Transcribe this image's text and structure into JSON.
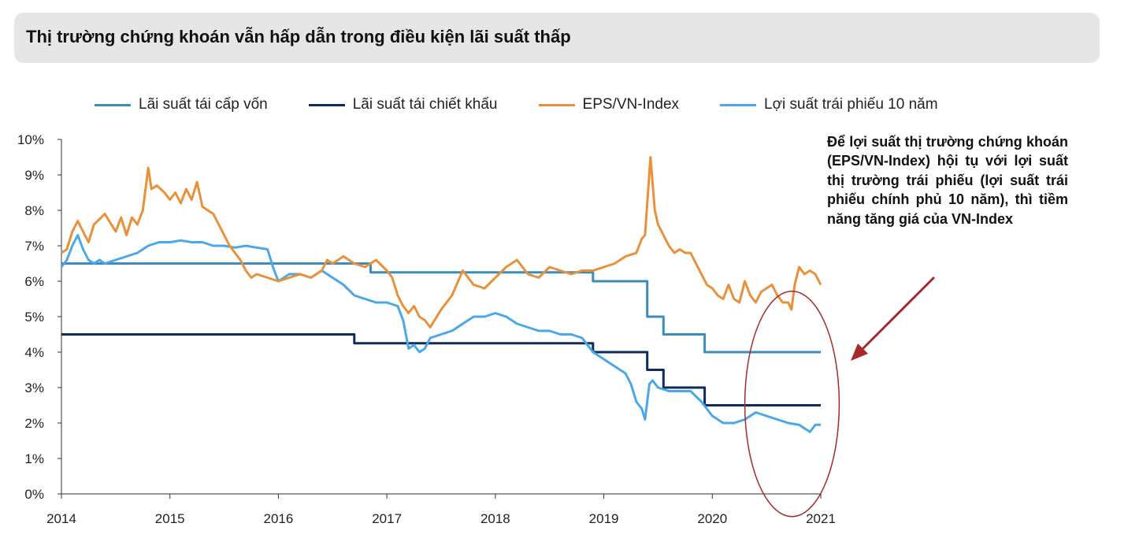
{
  "title": "Thị trường chứng khoán vẫn hấp dẫn trong điều kiện lãi suất thấp",
  "annotation": "Để lợi suất thị trường chứng khoán (EPS/VN-Index) hội tụ với lợi suất thị trường trái phiếu (lợi suất trái phiếu chính phủ 10 năm), thì tiềm năng tăng giá của VN-Index",
  "colors": {
    "refinance": "#3c8dbc",
    "discount": "#0f2a5c",
    "eps": "#e8913a",
    "bond": "#4aa8e8",
    "arrow": "#a72a2a",
    "circle": "#a72a2a"
  },
  "chart_data": {
    "type": "line",
    "title": "Thị trường chứng khoán vẫn hấp dẫn trong điều kiện lãi suất thấp",
    "xlabel": "",
    "ylabel": "",
    "xlim": [
      2014,
      2021
    ],
    "ylim": [
      0,
      10
    ],
    "x_ticks": [
      "2014",
      "2015",
      "2016",
      "2017",
      "2018",
      "2019",
      "2020",
      "2021"
    ],
    "y_ticks": [
      "0%",
      "1%",
      "2%",
      "3%",
      "4%",
      "5%",
      "6%",
      "7%",
      "8%",
      "9%",
      "10%"
    ],
    "legend_position": "top",
    "grid": false,
    "series": [
      {
        "name": "Lãi suất tái cấp vốn",
        "step": true,
        "x": [
          2014.0,
          2016.85,
          2018.9,
          2019.4,
          2019.55,
          2019.93,
          2021.0
        ],
        "y": [
          6.5,
          6.25,
          6.0,
          5.0,
          4.5,
          4.0,
          4.0
        ]
      },
      {
        "name": "Lãi suất tái chiết khấu",
        "step": true,
        "x": [
          2014.0,
          2016.7,
          2018.9,
          2019.4,
          2019.55,
          2019.93,
          2021.0
        ],
        "y": [
          4.5,
          4.25,
          4.0,
          3.5,
          3.0,
          2.5,
          2.5
        ]
      },
      {
        "name": "EPS/VN-Index",
        "x": [
          2014.0,
          2014.05,
          2014.1,
          2014.15,
          2014.2,
          2014.25,
          2014.3,
          2014.4,
          2014.5,
          2014.55,
          2014.6,
          2014.65,
          2014.7,
          2014.75,
          2014.8,
          2014.83,
          2014.88,
          2014.95,
          2015.0,
          2015.05,
          2015.1,
          2015.15,
          2015.2,
          2015.25,
          2015.3,
          2015.4,
          2015.5,
          2015.55,
          2015.6,
          2015.65,
          2015.7,
          2015.75,
          2015.8,
          2015.9,
          2016.0,
          2016.1,
          2016.2,
          2016.3,
          2016.4,
          2016.45,
          2016.5,
          2016.6,
          2016.7,
          2016.8,
          2016.9,
          2017.0,
          2017.05,
          2017.1,
          2017.15,
          2017.2,
          2017.25,
          2017.3,
          2017.35,
          2017.4,
          2017.5,
          2017.6,
          2017.7,
          2017.8,
          2017.9,
          2018.0,
          2018.1,
          2018.15,
          2018.2,
          2018.3,
          2018.4,
          2018.5,
          2018.6,
          2018.7,
          2018.8,
          2018.9,
          2019.0,
          2019.1,
          2019.2,
          2019.3,
          2019.35,
          2019.38,
          2019.4,
          2019.43,
          2019.47,
          2019.5,
          2019.55,
          2019.6,
          2019.65,
          2019.7,
          2019.75,
          2019.8,
          2019.85,
          2019.9,
          2019.95,
          2020.0,
          2020.05,
          2020.1,
          2020.15,
          2020.2,
          2020.25,
          2020.3,
          2020.35,
          2020.4,
          2020.45,
          2020.5,
          2020.55,
          2020.6,
          2020.65,
          2020.7,
          2020.73,
          2020.76,
          2020.8,
          2020.85,
          2020.9,
          2020.95,
          2021.0
        ],
        "y": [
          6.8,
          6.9,
          7.4,
          7.7,
          7.4,
          7.1,
          7.6,
          7.9,
          7.4,
          7.8,
          7.3,
          7.8,
          7.6,
          8.0,
          9.2,
          8.6,
          8.7,
          8.5,
          8.3,
          8.5,
          8.2,
          8.6,
          8.3,
          8.8,
          8.1,
          7.9,
          7.3,
          7.0,
          6.8,
          6.6,
          6.3,
          6.1,
          6.2,
          6.1,
          6.0,
          6.1,
          6.2,
          6.1,
          6.3,
          6.6,
          6.5,
          6.7,
          6.5,
          6.4,
          6.6,
          6.3,
          6.1,
          5.6,
          5.3,
          5.1,
          5.3,
          5.0,
          4.9,
          4.7,
          5.2,
          5.6,
          6.3,
          5.9,
          5.8,
          6.1,
          6.4,
          6.5,
          6.6,
          6.2,
          6.1,
          6.4,
          6.3,
          6.2,
          6.3,
          6.3,
          6.4,
          6.5,
          6.7,
          6.8,
          7.2,
          7.3,
          8.2,
          9.5,
          8.0,
          7.6,
          7.3,
          7.0,
          6.8,
          6.9,
          6.8,
          6.8,
          6.5,
          6.2,
          5.9,
          5.8,
          5.6,
          5.5,
          5.9,
          5.5,
          5.4,
          6.0,
          5.6,
          5.4,
          5.7,
          5.8,
          5.9,
          5.6,
          5.4,
          5.4,
          5.2,
          5.9,
          6.4,
          6.2,
          6.3,
          6.2,
          5.9
        ]
      },
      {
        "name": "Lợi suất trái phiếu 10 năm",
        "x": [
          2014.0,
          2014.05,
          2014.1,
          2014.15,
          2014.2,
          2014.25,
          2014.3,
          2014.35,
          2014.4,
          2014.5,
          2014.6,
          2014.7,
          2014.8,
          2014.9,
          2015.0,
          2015.1,
          2015.2,
          2015.3,
          2015.4,
          2015.5,
          2015.6,
          2015.7,
          2015.8,
          2015.9,
          2015.95,
          2016.0,
          2016.1,
          2016.2,
          2016.3,
          2016.4,
          2016.5,
          2016.6,
          2016.7,
          2016.8,
          2016.9,
          2017.0,
          2017.1,
          2017.15,
          2017.2,
          2017.25,
          2017.3,
          2017.35,
          2017.4,
          2017.5,
          2017.6,
          2017.7,
          2017.8,
          2017.9,
          2018.0,
          2018.1,
          2018.2,
          2018.3,
          2018.4,
          2018.5,
          2018.6,
          2018.7,
          2018.8,
          2018.9,
          2019.0,
          2019.1,
          2019.15,
          2019.2,
          2019.25,
          2019.3,
          2019.35,
          2019.38,
          2019.42,
          2019.45,
          2019.5,
          2019.6,
          2019.7,
          2019.8,
          2019.9,
          2019.95,
          2020.0,
          2020.1,
          2020.2,
          2020.3,
          2020.4,
          2020.5,
          2020.6,
          2020.7,
          2020.8,
          2020.85,
          2020.9,
          2020.95,
          2021.0
        ],
        "y": [
          6.4,
          6.6,
          7.0,
          7.3,
          6.9,
          6.6,
          6.5,
          6.6,
          6.5,
          6.6,
          6.7,
          6.8,
          7.0,
          7.1,
          7.1,
          7.15,
          7.1,
          7.1,
          7.0,
          7.0,
          6.95,
          7.0,
          6.95,
          6.9,
          6.4,
          6.0,
          6.2,
          6.2,
          6.1,
          6.3,
          6.1,
          5.9,
          5.6,
          5.5,
          5.4,
          5.4,
          5.3,
          4.9,
          4.1,
          4.2,
          4.0,
          4.1,
          4.4,
          4.5,
          4.6,
          4.8,
          5.0,
          5.0,
          5.1,
          5.0,
          4.8,
          4.7,
          4.6,
          4.6,
          4.5,
          4.5,
          4.4,
          4.0,
          3.8,
          3.6,
          3.5,
          3.4,
          3.1,
          2.6,
          2.4,
          2.1,
          3.1,
          3.2,
          3.0,
          2.9,
          2.9,
          2.9,
          2.6,
          2.4,
          2.2,
          2.0,
          2.0,
          2.1,
          2.3,
          2.2,
          2.1,
          2.0,
          1.95,
          1.85,
          1.75,
          1.95,
          1.95
        ]
      }
    ]
  }
}
